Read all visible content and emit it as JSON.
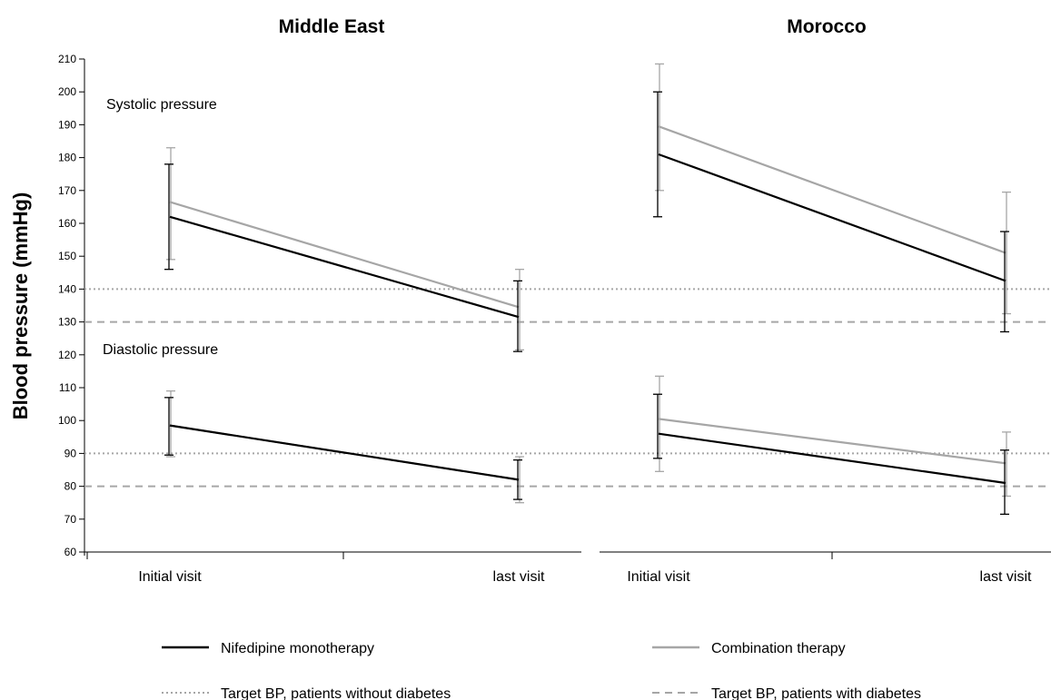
{
  "chart_data": {
    "type": "line",
    "ylabel": "Blood pressure (mmHg)",
    "ylim": [
      60,
      210
    ],
    "yticks": [
      "60",
      "70",
      "80",
      "90",
      "100",
      "110",
      "120",
      "130",
      "140",
      "150",
      "160",
      "170",
      "180",
      "190",
      "200",
      "210"
    ],
    "categories": [
      "Initial visit",
      "last visit"
    ],
    "annotations": {
      "systolic": "Systolic pressure",
      "diastolic": "Diastolic pressure"
    },
    "colors": {
      "nifedipine": "#000000",
      "combination": "#a6a6a6",
      "target": "#a6a6a6"
    },
    "reference_lines": [
      {
        "name": "Target BP, patients without diabetes",
        "style": "dotted",
        "values": [
          140,
          90
        ]
      },
      {
        "name": "Target BP, patients with diabetes",
        "style": "dashed",
        "values": [
          130,
          80
        ]
      }
    ],
    "legend": {
      "nifedipine": "Nifedipine monotherapy",
      "combination": "Combination therapy",
      "no_diabetes": "Target BP, patients without diabetes",
      "diabetes": "Target BP, patients with diabetes"
    },
    "panels": [
      {
        "title": "Middle East",
        "series": [
          {
            "key": "nifedipine",
            "name": "Nifedipine monotherapy",
            "systolic": [
              162,
              131.5
            ],
            "systolic_err": [
              [
                146,
                178
              ],
              [
                121,
                142.5
              ]
            ],
            "diastolic": [
              98.5,
              82
            ],
            "diastolic_err": [
              [
                89.5,
                107
              ],
              [
                76,
                88
              ]
            ]
          },
          {
            "key": "combination",
            "name": "Combination therapy",
            "systolic": [
              166.5,
              134.5
            ],
            "systolic_err": [
              [
                149,
                183
              ],
              [
                121.5,
                146
              ]
            ],
            "diastolic": [
              98.5,
              82
            ],
            "diastolic_err": [
              [
                89,
                109
              ],
              [
                75,
                89
              ]
            ]
          }
        ]
      },
      {
        "title": "Morocco",
        "series": [
          {
            "key": "nifedipine",
            "name": "Nifedipine monotherapy",
            "systolic": [
              181,
              142.5
            ],
            "systolic_err": [
              [
                162,
                200
              ],
              [
                127,
                157.5
              ]
            ],
            "diastolic": [
              96,
              81
            ],
            "diastolic_err": [
              [
                88.5,
                108
              ],
              [
                71.5,
                91
              ]
            ]
          },
          {
            "key": "combination",
            "name": "Combination therapy",
            "systolic": [
              189.5,
              151
            ],
            "systolic_err": [
              [
                170,
                208.5
              ],
              [
                132.5,
                169.5
              ]
            ],
            "diastolic": [
              100.5,
              87
            ],
            "diastolic_err": [
              [
                84.5,
                113.5
              ],
              [
                77,
                96.5
              ]
            ]
          }
        ]
      }
    ]
  }
}
